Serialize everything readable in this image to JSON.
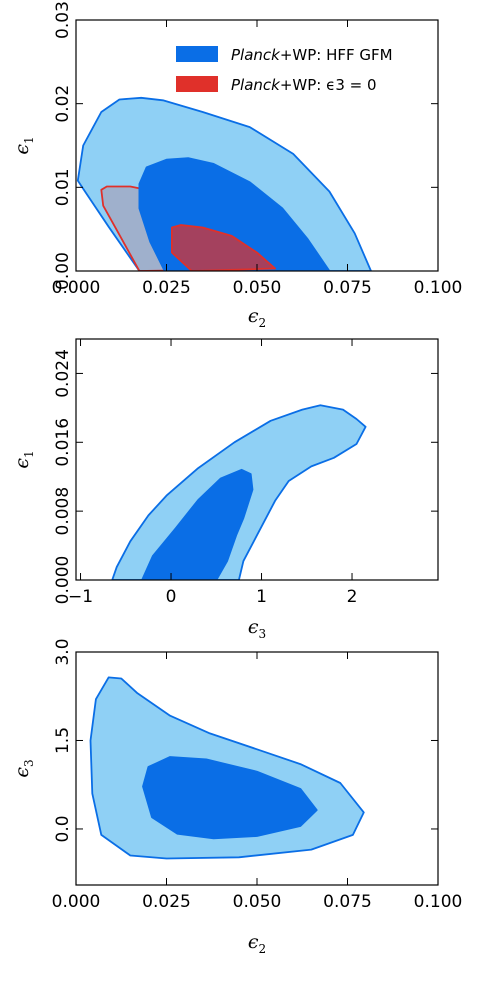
{
  "chart_data": [
    {
      "type": "contour",
      "xlabel": "ϵ2",
      "ylabel": "ϵ1",
      "xlim": [
        0.0,
        0.1
      ],
      "ylim": [
        0.0,
        0.03
      ],
      "xticks": [
        "0.000",
        "0.025",
        "0.050",
        "0.075",
        "0.100"
      ],
      "yticks": [
        "0.00",
        "0.01",
        "0.02",
        "0.03"
      ],
      "legend_position": "top-right",
      "legend": [
        {
          "prefix": "Planck",
          "suffix": "+WP: HFF GFM",
          "color": "#0a6ee6"
        },
        {
          "prefix": "Planck",
          "suffix": "+WP: ϵ3 = 0",
          "color": "#e0302a"
        }
      ],
      "series": [
        {
          "color": "#0a6ee6",
          "levels": [
            {
              "cl": "95%",
              "points": [
                [
                  0.0005,
                  0.0108
                ],
                [
                  0.002,
                  0.015
                ],
                [
                  0.007,
                  0.019
                ],
                [
                  0.012,
                  0.0205
                ],
                [
                  0.018,
                  0.0207
                ],
                [
                  0.024,
                  0.0204
                ],
                [
                  0.035,
                  0.019
                ],
                [
                  0.048,
                  0.0172
                ],
                [
                  0.06,
                  0.014
                ],
                [
                  0.07,
                  0.0095
                ],
                [
                  0.077,
                  0.0045
                ],
                [
                  0.0815,
                  0.0
                ],
                [
                  0.0175,
                  0.0
                ],
                [
                  0.009,
                  0.0053
                ],
                [
                  0.0025,
                  0.0095
                ]
              ]
            },
            {
              "cl": "68%",
              "points": [
                [
                  0.0175,
                  0.0104
                ],
                [
                  0.0195,
                  0.0124
                ],
                [
                  0.025,
                  0.0133
                ],
                [
                  0.031,
                  0.0135
                ],
                [
                  0.038,
                  0.0128
                ],
                [
                  0.048,
                  0.0106
                ],
                [
                  0.057,
                  0.0075
                ],
                [
                  0.064,
                  0.0038
                ],
                [
                  0.07,
                  0.0
                ],
                [
                  0.0245,
                  0.0
                ],
                [
                  0.0205,
                  0.0035
                ],
                [
                  0.0175,
                  0.0075
                ]
              ]
            }
          ]
        },
        {
          "color": "#e0302a",
          "levels": [
            {
              "cl": "95%",
              "points": [
                [
                  0.007,
                  0.0097
                ],
                [
                  0.0085,
                  0.0101
                ],
                [
                  0.015,
                  0.0101
                ],
                [
                  0.023,
                  0.0094
                ],
                [
                  0.033,
                  0.0077
                ],
                [
                  0.043,
                  0.0055
                ],
                [
                  0.052,
                  0.0032
                ],
                [
                  0.06,
                  0.0003
                ],
                [
                  0.0175,
                  0.0
                ],
                [
                  0.011,
                  0.0051
                ],
                [
                  0.0075,
                  0.0078
                ]
              ]
            },
            {
              "cl": "68%",
              "points": [
                [
                  0.0265,
                  0.0052
                ],
                [
                  0.029,
                  0.0055
                ],
                [
                  0.035,
                  0.0052
                ],
                [
                  0.043,
                  0.0042
                ],
                [
                  0.05,
                  0.0022
                ],
                [
                  0.055,
                  0.0003
                ],
                [
                  0.032,
                  0.0
                ],
                [
                  0.0265,
                  0.0022
                ]
              ]
            }
          ]
        }
      ]
    },
    {
      "type": "contour",
      "xlabel": "ϵ3",
      "ylabel": "ϵ1",
      "xlim": [
        -1.05,
        2.95
      ],
      "ylim": [
        0.0,
        0.028
      ],
      "xticks": [
        "−1",
        "0",
        "1",
        "2"
      ],
      "yticks": [
        "0.000",
        "0.008",
        "0.016",
        "0.024"
      ],
      "series": [
        {
          "color": "#0a6ee6",
          "levels": [
            {
              "cl": "95%",
              "points": [
                [
                  -0.65,
                  0.0
                ],
                [
                  -0.6,
                  0.0015
                ],
                [
                  -0.45,
                  0.0045
                ],
                [
                  -0.25,
                  0.0075
                ],
                [
                  -0.05,
                  0.0098
                ],
                [
                  0.3,
                  0.013
                ],
                [
                  0.7,
                  0.016
                ],
                [
                  1.1,
                  0.0185
                ],
                [
                  1.45,
                  0.0198
                ],
                [
                  1.65,
                  0.0203
                ],
                [
                  1.9,
                  0.0198
                ],
                [
                  2.05,
                  0.0187
                ],
                [
                  2.15,
                  0.0178
                ],
                [
                  2.05,
                  0.0158
                ],
                [
                  1.8,
                  0.0142
                ],
                [
                  1.55,
                  0.0132
                ],
                [
                  1.3,
                  0.0115
                ],
                [
                  1.15,
                  0.0092
                ],
                [
                  0.95,
                  0.0052
                ],
                [
                  0.8,
                  0.0022
                ],
                [
                  0.75,
                  0.0
                ]
              ]
            },
            {
              "cl": "68%",
              "points": [
                [
                  -0.32,
                  0.0
                ],
                [
                  -0.2,
                  0.0028
                ],
                [
                  0.05,
                  0.006
                ],
                [
                  0.3,
                  0.0093
                ],
                [
                  0.55,
                  0.0118
                ],
                [
                  0.78,
                  0.0128
                ],
                [
                  0.88,
                  0.0123
                ],
                [
                  0.9,
                  0.0105
                ],
                [
                  0.8,
                  0.0072
                ],
                [
                  0.72,
                  0.0052
                ],
                [
                  0.62,
                  0.0022
                ],
                [
                  0.5,
                  0.0
                ]
              ]
            }
          ]
        }
      ]
    },
    {
      "type": "contour",
      "xlabel": "ϵ2",
      "ylabel": "ϵ3",
      "xlim": [
        0.0,
        0.1
      ],
      "ylim": [
        -0.95,
        3.0
      ],
      "xticks": [
        "0.000",
        "0.025",
        "0.050",
        "0.075",
        "0.100"
      ],
      "yticks": [
        "0.0",
        "1.5",
        "3.0"
      ],
      "series": [
        {
          "color": "#0a6ee6",
          "levels": [
            {
              "cl": "95%",
              "points": [
                [
                  0.004,
                  1.5
                ],
                [
                  0.0055,
                  2.2
                ],
                [
                  0.009,
                  2.57
                ],
                [
                  0.0125,
                  2.55
                ],
                [
                  0.017,
                  2.3
                ],
                [
                  0.026,
                  1.92
                ],
                [
                  0.037,
                  1.62
                ],
                [
                  0.05,
                  1.35
                ],
                [
                  0.062,
                  1.1
                ],
                [
                  0.073,
                  0.78
                ],
                [
                  0.0795,
                  0.28
                ],
                [
                  0.0765,
                  -0.1
                ],
                [
                  0.065,
                  -0.35
                ],
                [
                  0.045,
                  -0.48
                ],
                [
                  0.025,
                  -0.5
                ],
                [
                  0.015,
                  -0.45
                ],
                [
                  0.007,
                  -0.1
                ],
                [
                  0.0045,
                  0.6
                ]
              ]
            },
            {
              "cl": "68%",
              "points": [
                [
                  0.0185,
                  0.72
                ],
                [
                  0.02,
                  1.05
                ],
                [
                  0.026,
                  1.22
                ],
                [
                  0.036,
                  1.18
                ],
                [
                  0.05,
                  0.97
                ],
                [
                  0.062,
                  0.68
                ],
                [
                  0.0665,
                  0.32
                ],
                [
                  0.062,
                  0.05
                ],
                [
                  0.05,
                  -0.12
                ],
                [
                  0.038,
                  -0.16
                ],
                [
                  0.028,
                  -0.08
                ],
                [
                  0.021,
                  0.2
                ]
              ]
            }
          ]
        }
      ]
    }
  ]
}
